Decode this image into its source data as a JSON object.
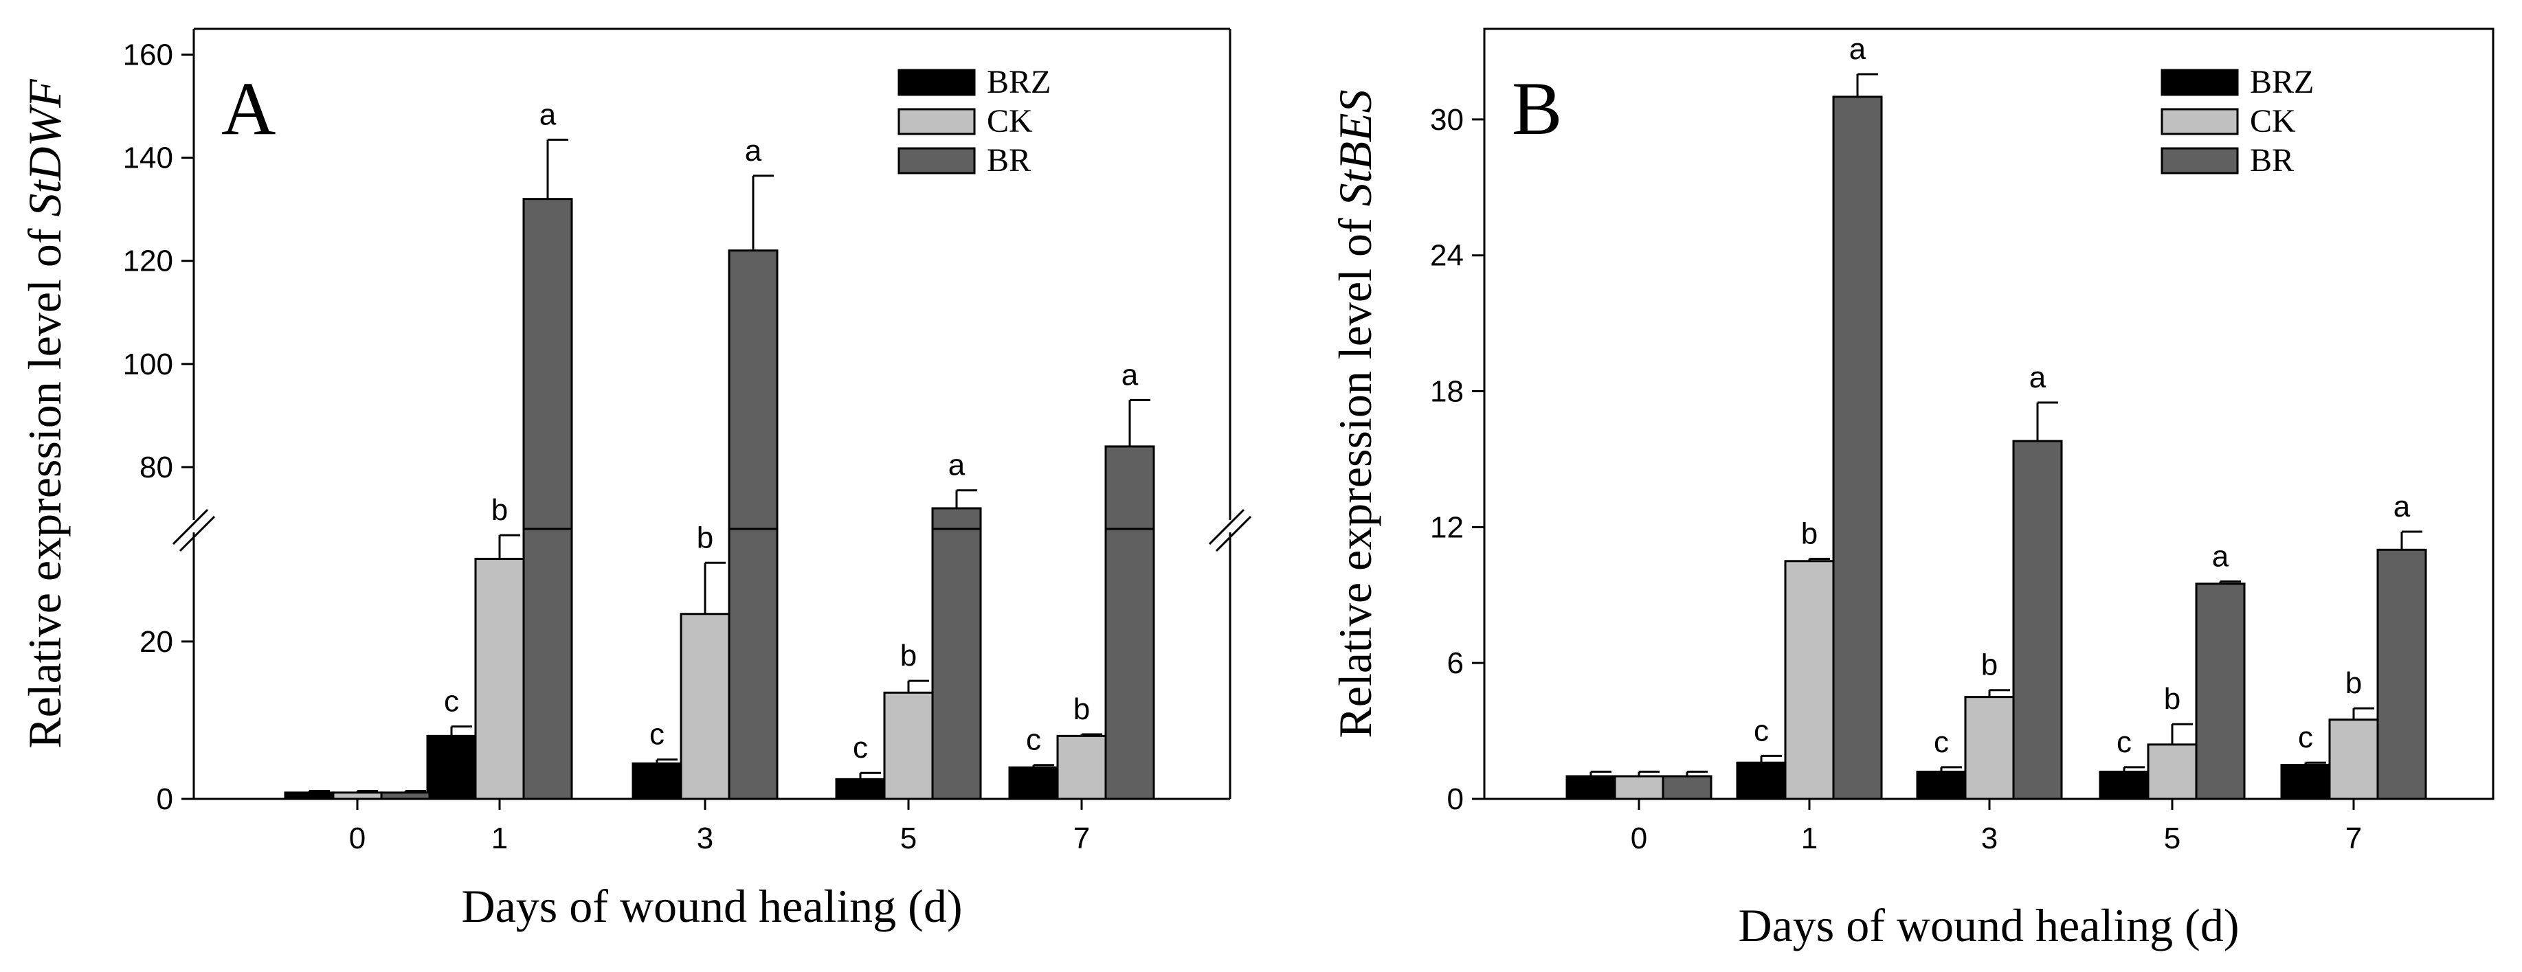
{
  "chart_data": [
    {
      "type": "bar",
      "panel_label": "A",
      "title": "",
      "xlabel": "Days of wound healing (d)",
      "ylabel_prefix": "Relative expression level of ",
      "ylabel_gene": "StDWF",
      "categories": [
        "0",
        "1",
        "3",
        "5",
        "7"
      ],
      "axis_break": true,
      "ylim_lower": [
        0,
        35
      ],
      "ylim_upper": [
        68,
        165
      ],
      "yticks_lower": [
        0,
        20
      ],
      "yticks_upper": [
        80,
        100,
        120,
        140,
        160
      ],
      "ytick_labels_lower": [
        "0",
        "20"
      ],
      "ytick_labels_upper": [
        "80",
        "100",
        "120",
        "140",
        "160"
      ],
      "legend_position": "top-right",
      "series": [
        {
          "name": "BRZ",
          "color": "#000000",
          "values": [
            0.8,
            8,
            4.5,
            2.5,
            4
          ],
          "errors": [
            0.2,
            1.2,
            0.5,
            0.8,
            0.3
          ],
          "letters": [
            "",
            "c",
            "c",
            "c",
            "c"
          ]
        },
        {
          "name": "CK",
          "color": "#c0c0c0",
          "values": [
            0.8,
            30.5,
            23.5,
            13.5,
            8
          ],
          "errors": [
            0.2,
            3,
            6.5,
            1.5,
            0.2
          ],
          "letters": [
            "",
            "b",
            "b",
            "b",
            "b"
          ]
        },
        {
          "name": "BR",
          "color": "#606060",
          "values": [
            0.8,
            132,
            122,
            72,
            84
          ],
          "errors": [
            0.2,
            11.5,
            14.5,
            3.5,
            9
          ],
          "letters": [
            "",
            "a",
            "a",
            "a",
            "a"
          ]
        }
      ]
    },
    {
      "type": "bar",
      "panel_label": "B",
      "title": "",
      "xlabel": "Days of wound healing (d)",
      "ylabel_prefix": "Relative expression level of ",
      "ylabel_gene": "StBES",
      "categories": [
        "0",
        "1",
        "3",
        "5",
        "7"
      ],
      "axis_break": false,
      "ylim": [
        0,
        34
      ],
      "yticks": [
        0,
        6,
        12,
        18,
        24,
        30
      ],
      "ytick_labels": [
        "0",
        "6",
        "12",
        "18",
        "24",
        "30"
      ],
      "legend_position": "top-right",
      "series": [
        {
          "name": "BRZ",
          "color": "#000000",
          "values": [
            1,
            1.6,
            1.2,
            1.2,
            1.5
          ],
          "errors": [
            0.2,
            0.3,
            0.2,
            0.2,
            0.1
          ],
          "letters": [
            "",
            "c",
            "c",
            "c",
            "c"
          ]
        },
        {
          "name": "CK",
          "color": "#c0c0c0",
          "values": [
            1,
            10.5,
            4.5,
            2.4,
            3.5
          ],
          "errors": [
            0.2,
            0.1,
            0.3,
            0.9,
            0.5
          ],
          "letters": [
            "",
            "b",
            "b",
            "b",
            "b"
          ]
        },
        {
          "name": "BR",
          "color": "#606060",
          "values": [
            1,
            31,
            15.8,
            9.5,
            11
          ],
          "errors": [
            0.2,
            1,
            1.7,
            0.1,
            0.8
          ],
          "letters": [
            "",
            "a",
            "a",
            "a",
            "a"
          ]
        }
      ]
    }
  ]
}
